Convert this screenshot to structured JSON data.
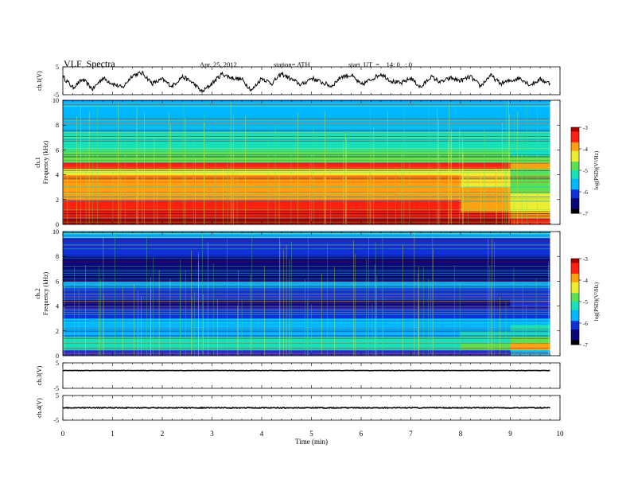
{
  "header": {
    "title": "VLF  Spectra",
    "date": "Apr. 25, 2012",
    "station": "station= ATH",
    "start_ut": "start  UT  =    14: 0   : 0"
  },
  "colors": {
    "colormap": [
      "#000000",
      "#08087a",
      "#1030d8",
      "#00b8ff",
      "#18e0b8",
      "#5ae050",
      "#ecec30",
      "#ffa010",
      "#ff2010",
      "#a60000"
    ],
    "trace": "#000000",
    "axis": "#000000"
  },
  "chart_data": [
    {
      "type": "line",
      "panel": "ch1-waveform",
      "ylabel": "ch.1(V)",
      "ylim": [
        -5,
        5
      ],
      "y_ticks": [
        "5",
        "-5"
      ],
      "x_range": [
        0,
        10
      ],
      "trace_end_min": 9.8,
      "series": [
        {
          "x": [
            0,
            0.2,
            0.4,
            0.6,
            0.8,
            1.0,
            1.2,
            1.4,
            1.6,
            1.8,
            2.0,
            2.2,
            2.4,
            2.6,
            2.8,
            3.0,
            3.2,
            3.4,
            3.6,
            3.8,
            4.0,
            4.2,
            4.4,
            4.6,
            4.8,
            5.0,
            5.2,
            5.4,
            5.6,
            5.8,
            6.0,
            6.2,
            6.4,
            6.6,
            6.8,
            7.0,
            7.2,
            7.4,
            7.6,
            7.8,
            8.0,
            8.2,
            8.4,
            8.6,
            8.8,
            9.0,
            9.2,
            9.4,
            9.6,
            9.8
          ],
          "values": [
            1.5,
            -2.5,
            0.5,
            -3.0,
            1.0,
            -1.0,
            -2.5,
            2.0,
            2.8,
            -1.0,
            0.5,
            -2.0,
            1.5,
            -0.5,
            -4.0,
            -1.0,
            2.5,
            1.0,
            0.5,
            -3.5,
            1.0,
            -1.0,
            2.5,
            0.5,
            -1.5,
            1.0,
            -0.5,
            -2.0,
            1.5,
            2.0,
            -1.5,
            0.5,
            2.5,
            0.0,
            -1.0,
            1.0,
            -2.5,
            1.5,
            -0.5,
            1.0,
            0.0,
            1.5,
            -2.0,
            2.0,
            -1.0,
            0.0,
            1.0,
            -1.5,
            0.5,
            -1.0
          ]
        }
      ]
    },
    {
      "type": "heatmap",
      "panel": "ch1-spectrogram",
      "xlabel": "",
      "ylabel": "Frequency  (kHz)",
      "channel_label": "ch.1",
      "ylim": [
        0,
        10
      ],
      "y_ticks": [
        "0",
        "2",
        "4",
        "6",
        "8",
        "10"
      ],
      "x_range": [
        0,
        10
      ],
      "data_end_min": 9.8,
      "colorbar": {
        "label": "log(PSD)(V²/Hz)",
        "range": [
          -7,
          -3
        ],
        "ticks": [
          "-3",
          "-4",
          "-5",
          "-6",
          "-7"
        ]
      },
      "freq_kHz": [
        0.25,
        0.75,
        1.25,
        1.75,
        2.25,
        2.75,
        3.25,
        3.75,
        4.25,
        4.75,
        5.25,
        5.75,
        6.25,
        6.75,
        7.25,
        7.75,
        8.25,
        8.75,
        9.25,
        9.75
      ],
      "time_min": [
        0.5,
        1.5,
        2.5,
        3.5,
        4.5,
        5.5,
        6.5,
        7.5,
        8.5,
        9.5
      ],
      "log_psd": [
        [
          -3.1,
          -3.1,
          -3.1,
          -3.1,
          -3.1,
          -3.1,
          -3.1,
          -3.1,
          -3.2,
          -3.4
        ],
        [
          -3.3,
          -3.3,
          -3.3,
          -3.3,
          -3.3,
          -3.3,
          -3.3,
          -3.3,
          -3.4,
          -3.7
        ],
        [
          -3.5,
          -3.5,
          -3.5,
          -3.5,
          -3.5,
          -3.5,
          -3.5,
          -3.5,
          -3.7,
          -4.2
        ],
        [
          -3.6,
          -3.6,
          -3.6,
          -3.6,
          -3.6,
          -3.6,
          -3.6,
          -3.6,
          -3.8,
          -4.4
        ],
        [
          -3.7,
          -3.7,
          -3.7,
          -3.7,
          -3.7,
          -3.7,
          -3.7,
          -3.7,
          -3.9,
          -4.5
        ],
        [
          -3.8,
          -3.8,
          -3.8,
          -3.8,
          -3.8,
          -3.8,
          -3.8,
          -3.8,
          -4.0,
          -4.6
        ],
        [
          -4.1,
          -4.1,
          -4.1,
          -4.1,
          -4.1,
          -4.1,
          -4.1,
          -4.1,
          -4.3,
          -4.8
        ],
        [
          -4.0,
          -4.0,
          -4.0,
          -4.0,
          -4.0,
          -4.0,
          -4.0,
          -4.0,
          -4.2,
          -4.7
        ],
        [
          -4.2,
          -4.2,
          -4.2,
          -4.2,
          -4.2,
          -4.2,
          -4.2,
          -4.2,
          -4.4,
          -4.9
        ],
        [
          -3.5,
          -3.5,
          -3.5,
          -3.5,
          -3.5,
          -3.5,
          -3.5,
          -3.5,
          -3.6,
          -3.7
        ],
        [
          -4.6,
          -4.6,
          -4.6,
          -4.6,
          -4.6,
          -4.6,
          -4.6,
          -4.6,
          -4.7,
          -5.0
        ],
        [
          -4.9,
          -4.9,
          -4.9,
          -4.9,
          -4.9,
          -4.9,
          -4.9,
          -4.9,
          -5.0,
          -5.1
        ],
        [
          -5.1,
          -5.1,
          -5.1,
          -5.1,
          -5.1,
          -5.1,
          -5.1,
          -5.1,
          -5.2,
          -5.2
        ],
        [
          -5.3,
          -5.3,
          -5.3,
          -5.3,
          -5.3,
          -5.3,
          -5.3,
          -5.3,
          -5.3,
          -5.3
        ],
        [
          -5.4,
          -5.4,
          -5.4,
          -5.4,
          -5.4,
          -5.4,
          -5.4,
          -5.4,
          -5.4,
          -5.4
        ],
        [
          -5.5,
          -5.5,
          -5.5,
          -5.5,
          -5.5,
          -5.5,
          -5.5,
          -5.5,
          -5.5,
          -5.5
        ],
        [
          -5.5,
          -5.5,
          -5.5,
          -5.5,
          -5.5,
          -5.5,
          -5.5,
          -5.5,
          -5.5,
          -5.5
        ],
        [
          -5.6,
          -5.6,
          -5.6,
          -5.6,
          -5.6,
          -5.6,
          -5.6,
          -5.6,
          -5.6,
          -5.6
        ],
        [
          -5.6,
          -5.6,
          -5.6,
          -5.6,
          -5.6,
          -5.6,
          -5.6,
          -5.6,
          -5.6,
          -5.6
        ],
        [
          -5.6,
          -5.6,
          -5.6,
          -5.6,
          -5.6,
          -5.6,
          -5.6,
          -5.6,
          -5.6,
          -5.6
        ]
      ]
    },
    {
      "type": "heatmap",
      "panel": "ch2-spectrogram",
      "xlabel": "",
      "ylabel": "Frequency  (kHz)",
      "channel_label": "ch.2",
      "ylim": [
        0,
        10
      ],
      "y_ticks": [
        "0",
        "2",
        "4",
        "6",
        "8",
        "10"
      ],
      "x_range": [
        0,
        10
      ],
      "data_end_min": 9.8,
      "colorbar": {
        "label": "log(PSD)(V²/Hz)",
        "range": [
          -7,
          -3
        ],
        "ticks": [
          "-3",
          "-4",
          "-5",
          "-6",
          "-7"
        ]
      },
      "freq_kHz": [
        0.25,
        0.75,
        1.25,
        1.75,
        2.25,
        2.75,
        3.25,
        3.75,
        4.25,
        4.75,
        5.25,
        5.75,
        6.25,
        6.75,
        7.25,
        7.75,
        8.25,
        8.75,
        9.25,
        9.75
      ],
      "time_min": [
        0.5,
        1.5,
        2.5,
        3.5,
        4.5,
        5.5,
        6.5,
        7.5,
        8.5,
        9.5
      ],
      "log_psd": [
        [
          -6.2,
          -6.2,
          -6.2,
          -6.2,
          -6.2,
          -6.2,
          -6.2,
          -6.2,
          -6.0,
          -5.5
        ],
        [
          -5.1,
          -5.1,
          -5.1,
          -5.1,
          -5.1,
          -5.1,
          -5.1,
          -5.1,
          -4.8,
          -4.1
        ],
        [
          -5.3,
          -5.3,
          -5.3,
          -5.3,
          -5.3,
          -5.3,
          -5.3,
          -5.3,
          -5.1,
          -4.8
        ],
        [
          -5.5,
          -5.5,
          -5.5,
          -5.5,
          -5.5,
          -5.5,
          -5.5,
          -5.5,
          -5.4,
          -5.2
        ],
        [
          -5.6,
          -5.6,
          -5.6,
          -5.6,
          -5.6,
          -5.6,
          -5.6,
          -5.6,
          -5.5,
          -5.4
        ],
        [
          -5.8,
          -5.8,
          -5.8,
          -5.8,
          -5.8,
          -5.8,
          -5.8,
          -5.8,
          -5.7,
          -5.6
        ],
        [
          -6.0,
          -6.0,
          -6.0,
          -6.0,
          -6.0,
          -6.0,
          -6.0,
          -6.0,
          -6.0,
          -5.9
        ],
        [
          -6.2,
          -6.2,
          -6.2,
          -6.2,
          -6.2,
          -6.2,
          -6.2,
          -6.2,
          -6.2,
          -6.1
        ],
        [
          -6.4,
          -6.4,
          -6.4,
          -6.4,
          -6.4,
          -6.4,
          -6.4,
          -6.4,
          -6.4,
          -6.3
        ],
        [
          -6.1,
          -6.1,
          -6.1,
          -6.1,
          -6.1,
          -6.1,
          -6.1,
          -6.1,
          -6.1,
          -6.0
        ],
        [
          -6.0,
          -6.0,
          -6.0,
          -6.0,
          -6.0,
          -6.0,
          -6.0,
          -6.0,
          -6.0,
          -6.0
        ],
        [
          -5.6,
          -5.6,
          -5.6,
          -5.6,
          -5.6,
          -5.6,
          -5.6,
          -5.6,
          -5.6,
          -5.6
        ],
        [
          -6.7,
          -6.7,
          -6.7,
          -6.7,
          -6.7,
          -6.7,
          -6.7,
          -6.7,
          -6.7,
          -6.7
        ],
        [
          -6.6,
          -6.6,
          -6.6,
          -6.6,
          -6.6,
          -6.6,
          -6.6,
          -6.6,
          -6.6,
          -6.6
        ],
        [
          -6.5,
          -6.5,
          -6.5,
          -6.5,
          -6.5,
          -6.5,
          -6.5,
          -6.5,
          -6.5,
          -6.5
        ],
        [
          -6.4,
          -6.4,
          -6.4,
          -6.4,
          -6.4,
          -6.4,
          -6.4,
          -6.4,
          -6.4,
          -6.4
        ],
        [
          -6.3,
          -6.3,
          -6.3,
          -6.3,
          -6.3,
          -6.3,
          -6.3,
          -6.3,
          -6.3,
          -6.3
        ],
        [
          -6.2,
          -6.2,
          -6.2,
          -6.2,
          -6.2,
          -6.2,
          -6.2,
          -6.2,
          -6.2,
          -6.2
        ],
        [
          -6.0,
          -6.0,
          -6.0,
          -6.0,
          -6.0,
          -6.0,
          -6.0,
          -6.0,
          -6.0,
          -6.0
        ],
        [
          -5.7,
          -5.7,
          -5.7,
          -5.7,
          -5.7,
          -5.7,
          -5.7,
          -5.7,
          -5.7,
          -5.7
        ]
      ]
    },
    {
      "type": "line",
      "panel": "ch3-waveform",
      "ylabel": "ch.3(V)",
      "ylim": [
        -5,
        5
      ],
      "y_ticks": [
        "5",
        "-5"
      ],
      "x_range": [
        0,
        10
      ],
      "series": [
        {
          "x": [
            0,
            9.8
          ],
          "values": [
            2,
            2
          ]
        }
      ]
    },
    {
      "type": "line",
      "panel": "ch4-waveform",
      "ylabel": "ch.4(V)",
      "ylim": [
        -5,
        5
      ],
      "y_ticks": [
        "5",
        "-5"
      ],
      "x_range": [
        0,
        10
      ],
      "xlabel": "Time  (min)",
      "x_ticks": [
        "0",
        "1",
        "2",
        "3",
        "4",
        "5",
        "6",
        "7",
        "8",
        "9",
        "10"
      ],
      "series": [
        {
          "x": [
            0,
            9.8
          ],
          "values": [
            0,
            0
          ]
        }
      ]
    }
  ]
}
